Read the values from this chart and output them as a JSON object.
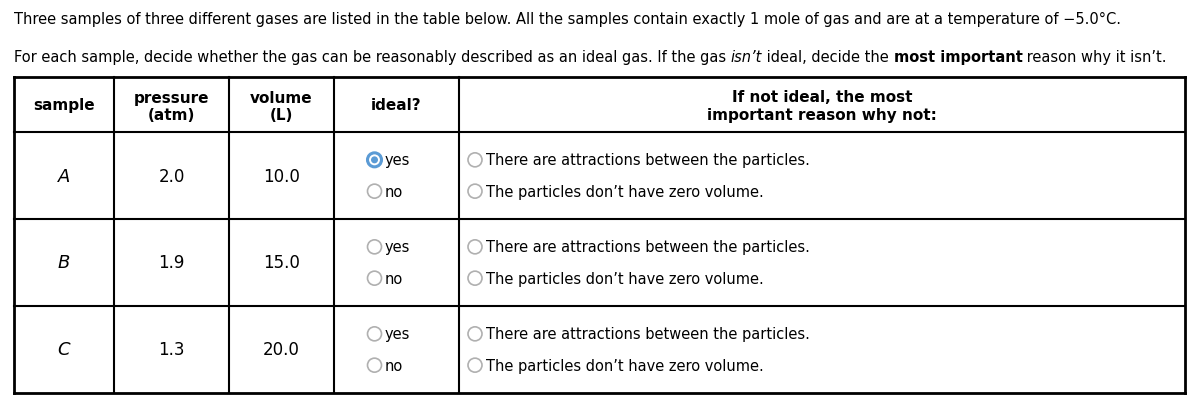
{
  "title_line1": "Three samples of three different gases are listed in the table below. All the samples contain exactly 1 mole of gas and are at a temperature of −5.0°C.",
  "title_line2_pre_italic": "For each sample, decide whether the gas can be reasonably described as an ideal gas. If the gas ",
  "title_line2_italic": "isn’t",
  "title_line2_pre_bold": " ideal, decide the ",
  "title_line2_bold": "most important",
  "title_line2_end": " reason why it isn’t.",
  "samples": [
    "A",
    "B",
    "C"
  ],
  "pressures": [
    "2.0",
    "1.9",
    "1.3"
  ],
  "volumes": [
    "10.0",
    "15.0",
    "20.0"
  ],
  "radio_yes_selected": [
    true,
    false,
    false
  ],
  "reason1": "There are attractions between the particles.",
  "reason2": "The particles don’t have zero volume.",
  "bg_color": "#ffffff",
  "radio_selected_color": "#5b9bd5",
  "radio_unselected_color": "#b0b0b0",
  "text_color": "#000000",
  "fig_width": 12.0,
  "fig_height": 4.02,
  "dpi": 100
}
